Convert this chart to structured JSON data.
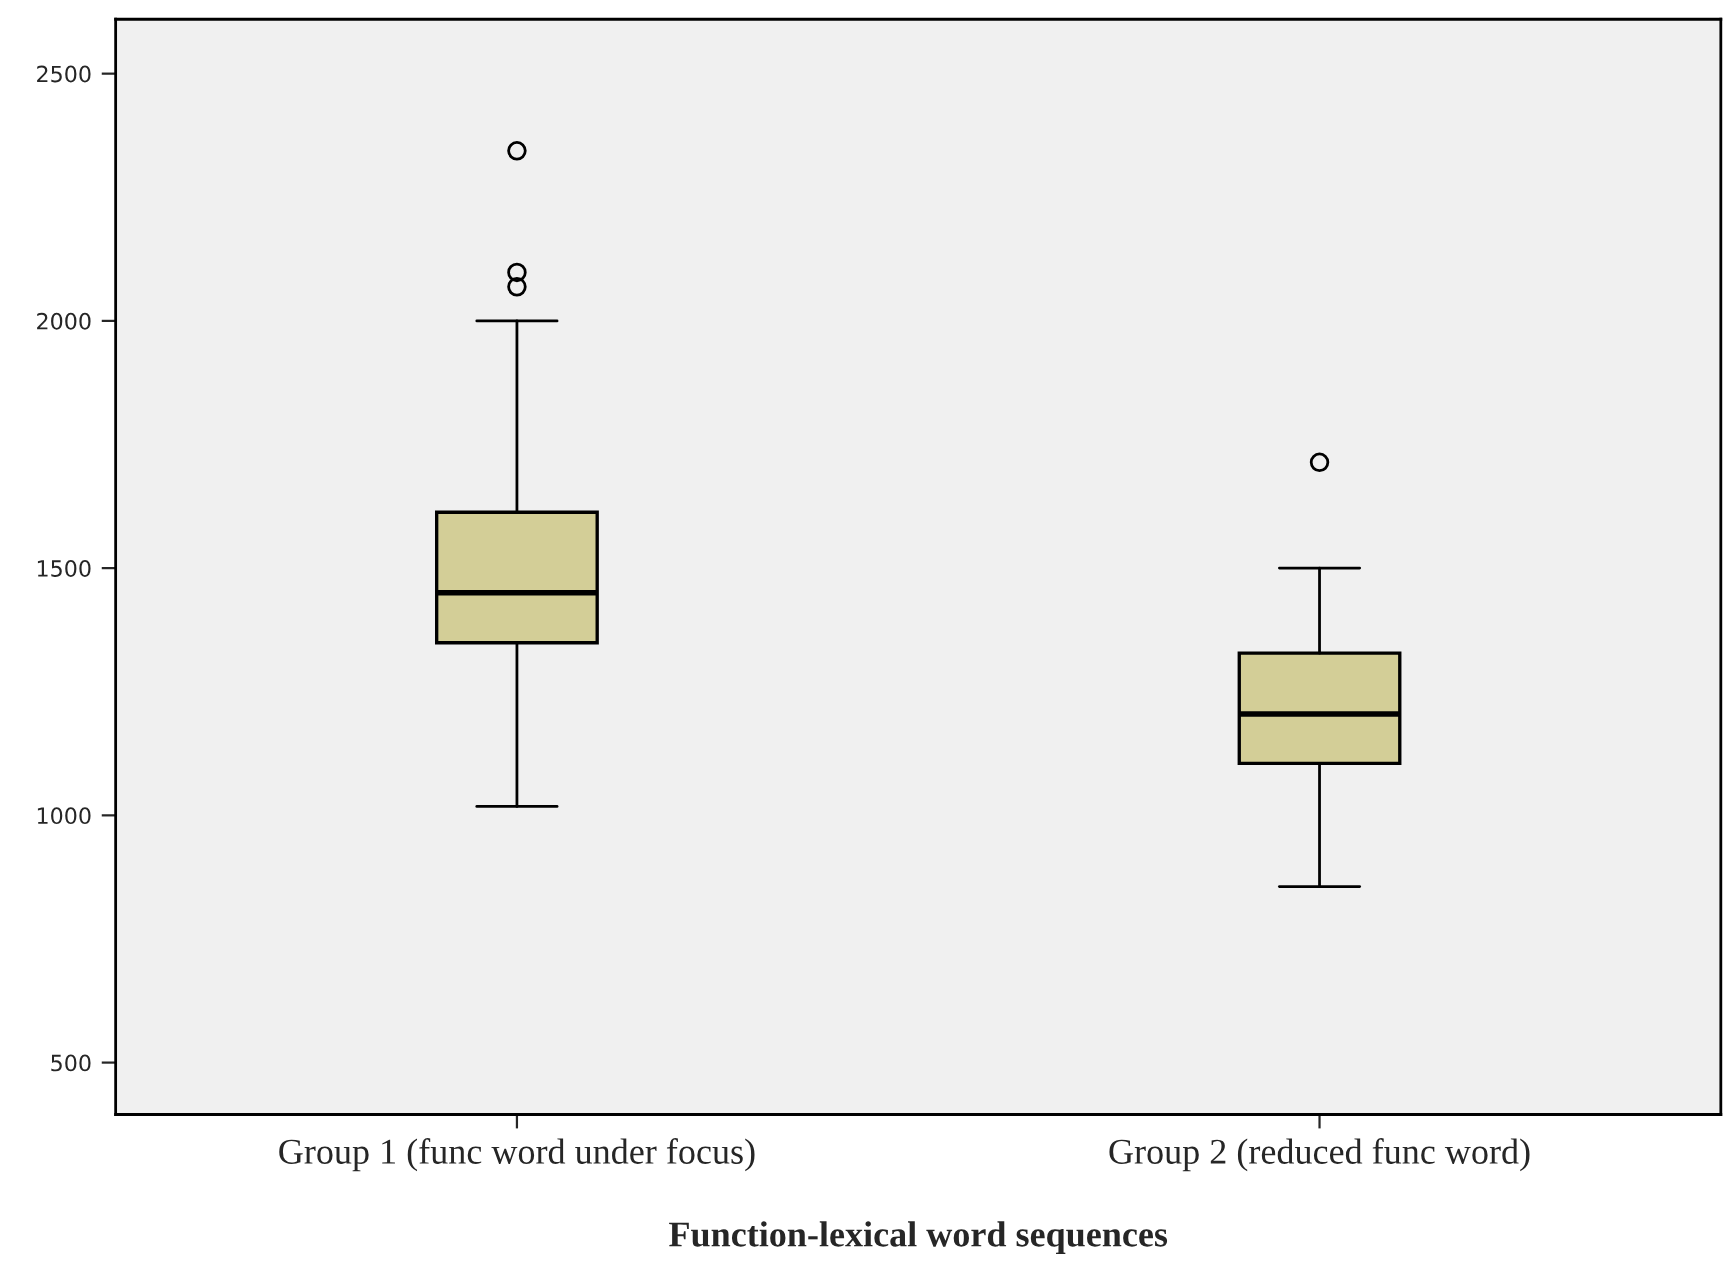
{
  "chart_data": {
    "type": "box",
    "xlabel": "Function-lexical word sequences",
    "categories": [
      "Group 1 (func word under focus)",
      "Group 2 (reduced func word)"
    ],
    "boxes": [
      {
        "low": 1018,
        "q1": 1349,
        "median": 1450,
        "q3": 1613,
        "high": 2000,
        "outliers": [
          2069,
          2098,
          2344
        ]
      },
      {
        "low": 856,
        "q1": 1105,
        "median": 1205,
        "q3": 1328,
        "high": 1500,
        "outliers": [
          1714
        ]
      }
    ],
    "color": "#d3ce97",
    "ylim": [
      395,
      2610
    ],
    "yticks": [
      500,
      1000,
      1500,
      2000,
      2500
    ],
    "grid": false,
    "legend": false
  }
}
